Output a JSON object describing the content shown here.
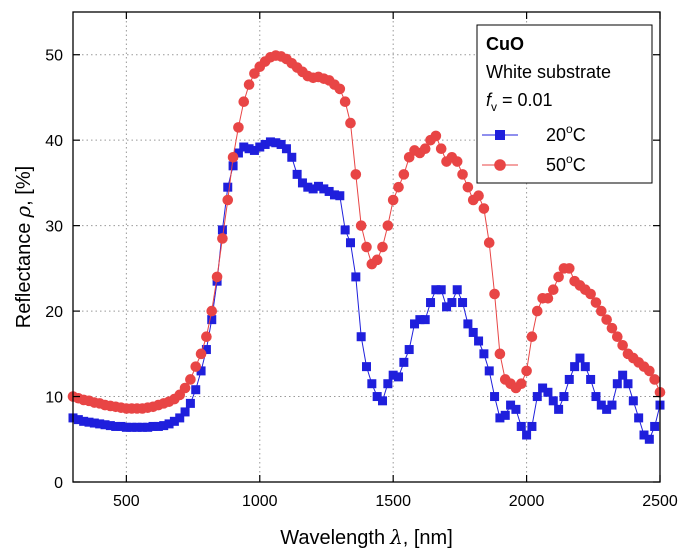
{
  "chart_data": {
    "type": "scatter",
    "xlabel": "Wavelength",
    "xlabel_symbol": "λ",
    "xlabel_unit": ", [nm]",
    "ylabel": "Reflectance",
    "ylabel_symbol": "ρ",
    "ylabel_unit": ", [%]",
    "xlim": [
      300,
      2500
    ],
    "ylim": [
      0,
      55
    ],
    "xticks": [
      500,
      1000,
      1500,
      2000,
      2500
    ],
    "yticks": [
      0,
      10,
      20,
      30,
      40,
      50
    ],
    "grid": "dotted",
    "legend": {
      "position": "top-right",
      "title": "CuO",
      "lines": [
        "White substrate"
      ],
      "param_symbol": "f",
      "param_subscript": "v",
      "param_value": " = 0.01"
    },
    "series": [
      {
        "name": "20°C",
        "label_value": "20",
        "label_sup": "o",
        "label_unit": "C",
        "color": "#1f1fdc",
        "marker": "square",
        "points": [
          [
            300,
            7.5
          ],
          [
            320,
            7.3
          ],
          [
            340,
            7.1
          ],
          [
            360,
            7.0
          ],
          [
            380,
            6.9
          ],
          [
            400,
            6.8
          ],
          [
            420,
            6.7
          ],
          [
            440,
            6.6
          ],
          [
            460,
            6.5
          ],
          [
            480,
            6.5
          ],
          [
            500,
            6.4
          ],
          [
            520,
            6.4
          ],
          [
            540,
            6.4
          ],
          [
            560,
            6.4
          ],
          [
            580,
            6.4
          ],
          [
            600,
            6.5
          ],
          [
            620,
            6.5
          ],
          [
            640,
            6.6
          ],
          [
            660,
            6.8
          ],
          [
            680,
            7.1
          ],
          [
            700,
            7.5
          ],
          [
            720,
            8.2
          ],
          [
            740,
            9.2
          ],
          [
            760,
            10.8
          ],
          [
            780,
            13.0
          ],
          [
            800,
            15.5
          ],
          [
            820,
            19.0
          ],
          [
            840,
            23.5
          ],
          [
            860,
            29.5
          ],
          [
            880,
            34.5
          ],
          [
            900,
            37.0
          ],
          [
            920,
            38.5
          ],
          [
            940,
            39.2
          ],
          [
            960,
            39.0
          ],
          [
            980,
            38.8
          ],
          [
            1000,
            39.2
          ],
          [
            1020,
            39.5
          ],
          [
            1040,
            39.8
          ],
          [
            1060,
            39.7
          ],
          [
            1080,
            39.5
          ],
          [
            1100,
            39.0
          ],
          [
            1120,
            38.0
          ],
          [
            1140,
            36.0
          ],
          [
            1160,
            35.0
          ],
          [
            1180,
            34.5
          ],
          [
            1200,
            34.3
          ],
          [
            1220,
            34.6
          ],
          [
            1240,
            34.3
          ],
          [
            1260,
            34.0
          ],
          [
            1280,
            33.6
          ],
          [
            1300,
            33.5
          ],
          [
            1320,
            29.5
          ],
          [
            1340,
            28.0
          ],
          [
            1360,
            24.0
          ],
          [
            1380,
            17.0
          ],
          [
            1400,
            13.5
          ],
          [
            1420,
            11.5
          ],
          [
            1440,
            10.0
          ],
          [
            1460,
            9.5
          ],
          [
            1480,
            11.5
          ],
          [
            1500,
            12.5
          ],
          [
            1520,
            12.3
          ],
          [
            1540,
            14.0
          ],
          [
            1560,
            15.5
          ],
          [
            1580,
            18.5
          ],
          [
            1600,
            19.0
          ],
          [
            1620,
            19.0
          ],
          [
            1640,
            21.0
          ],
          [
            1660,
            22.5
          ],
          [
            1680,
            22.5
          ],
          [
            1700,
            20.5
          ],
          [
            1720,
            21.0
          ],
          [
            1740,
            22.5
          ],
          [
            1760,
            21.0
          ],
          [
            1780,
            18.5
          ],
          [
            1800,
            17.5
          ],
          [
            1820,
            16.5
          ],
          [
            1840,
            15.0
          ],
          [
            1860,
            13.0
          ],
          [
            1880,
            10.0
          ],
          [
            1900,
            7.5
          ],
          [
            1920,
            7.8
          ],
          [
            1940,
            9.0
          ],
          [
            1960,
            8.5
          ],
          [
            1980,
            6.5
          ],
          [
            2000,
            5.5
          ],
          [
            2020,
            6.5
          ],
          [
            2040,
            10.0
          ],
          [
            2060,
            11.0
          ],
          [
            2080,
            10.5
          ],
          [
            2100,
            9.5
          ],
          [
            2120,
            8.5
          ],
          [
            2140,
            10.0
          ],
          [
            2160,
            12.0
          ],
          [
            2180,
            13.5
          ],
          [
            2200,
            14.5
          ],
          [
            2220,
            13.5
          ],
          [
            2240,
            12.0
          ],
          [
            2260,
            10.0
          ],
          [
            2280,
            9.0
          ],
          [
            2300,
            8.5
          ],
          [
            2320,
            9.0
          ],
          [
            2340,
            11.5
          ],
          [
            2360,
            12.5
          ],
          [
            2380,
            11.5
          ],
          [
            2400,
            9.5
          ],
          [
            2420,
            7.5
          ],
          [
            2440,
            5.5
          ],
          [
            2460,
            5.0
          ],
          [
            2480,
            6.5
          ],
          [
            2500,
            9.0
          ]
        ]
      },
      {
        "name": "50°C",
        "label_value": "50",
        "label_sup": "o",
        "label_unit": "C",
        "color": "#e84545",
        "marker": "circle",
        "points": [
          [
            300,
            10.0
          ],
          [
            320,
            9.8
          ],
          [
            340,
            9.6
          ],
          [
            360,
            9.5
          ],
          [
            380,
            9.3
          ],
          [
            400,
            9.2
          ],
          [
            420,
            9.0
          ],
          [
            440,
            8.9
          ],
          [
            460,
            8.8
          ],
          [
            480,
            8.7
          ],
          [
            500,
            8.6
          ],
          [
            520,
            8.6
          ],
          [
            540,
            8.6
          ],
          [
            560,
            8.6
          ],
          [
            580,
            8.7
          ],
          [
            600,
            8.8
          ],
          [
            620,
            9.0
          ],
          [
            640,
            9.2
          ],
          [
            660,
            9.4
          ],
          [
            680,
            9.7
          ],
          [
            700,
            10.2
          ],
          [
            720,
            11.0
          ],
          [
            740,
            12.0
          ],
          [
            760,
            13.5
          ],
          [
            780,
            15.0
          ],
          [
            800,
            17.0
          ],
          [
            820,
            20.0
          ],
          [
            840,
            24.0
          ],
          [
            860,
            28.5
          ],
          [
            880,
            33.0
          ],
          [
            900,
            38.0
          ],
          [
            920,
            41.5
          ],
          [
            940,
            44.5
          ],
          [
            960,
            46.5
          ],
          [
            980,
            47.8
          ],
          [
            1000,
            48.6
          ],
          [
            1020,
            49.2
          ],
          [
            1040,
            49.7
          ],
          [
            1060,
            49.9
          ],
          [
            1080,
            49.8
          ],
          [
            1100,
            49.5
          ],
          [
            1120,
            49.0
          ],
          [
            1140,
            48.5
          ],
          [
            1160,
            48.0
          ],
          [
            1180,
            47.5
          ],
          [
            1200,
            47.3
          ],
          [
            1220,
            47.4
          ],
          [
            1240,
            47.2
          ],
          [
            1260,
            47.0
          ],
          [
            1280,
            46.5
          ],
          [
            1300,
            46.0
          ],
          [
            1320,
            44.5
          ],
          [
            1340,
            42.0
          ],
          [
            1360,
            36.0
          ],
          [
            1380,
            30.0
          ],
          [
            1400,
            27.5
          ],
          [
            1420,
            25.5
          ],
          [
            1440,
            26.0
          ],
          [
            1460,
            27.5
          ],
          [
            1480,
            30.0
          ],
          [
            1500,
            33.0
          ],
          [
            1520,
            34.5
          ],
          [
            1540,
            36.0
          ],
          [
            1560,
            38.0
          ],
          [
            1580,
            38.8
          ],
          [
            1600,
            38.5
          ],
          [
            1620,
            39.0
          ],
          [
            1640,
            40.0
          ],
          [
            1660,
            40.5
          ],
          [
            1680,
            39.0
          ],
          [
            1700,
            37.5
          ],
          [
            1720,
            38.0
          ],
          [
            1740,
            37.5
          ],
          [
            1760,
            36.0
          ],
          [
            1780,
            34.5
          ],
          [
            1800,
            33.0
          ],
          [
            1820,
            33.5
          ],
          [
            1840,
            32.0
          ],
          [
            1860,
            28.0
          ],
          [
            1880,
            22.0
          ],
          [
            1900,
            15.0
          ],
          [
            1920,
            12.0
          ],
          [
            1940,
            11.5
          ],
          [
            1960,
            11.0
          ],
          [
            1980,
            11.5
          ],
          [
            2000,
            13.0
          ],
          [
            2020,
            17.0
          ],
          [
            2040,
            20.0
          ],
          [
            2060,
            21.5
          ],
          [
            2080,
            21.5
          ],
          [
            2100,
            22.5
          ],
          [
            2120,
            24.0
          ],
          [
            2140,
            25.0
          ],
          [
            2160,
            25.0
          ],
          [
            2180,
            23.5
          ],
          [
            2200,
            23.0
          ],
          [
            2220,
            22.5
          ],
          [
            2240,
            22.0
          ],
          [
            2260,
            21.0
          ],
          [
            2280,
            20.0
          ],
          [
            2300,
            19.0
          ],
          [
            2320,
            18.0
          ],
          [
            2340,
            17.0
          ],
          [
            2360,
            16.0
          ],
          [
            2380,
            15.0
          ],
          [
            2400,
            14.5
          ],
          [
            2420,
            14.0
          ],
          [
            2440,
            13.5
          ],
          [
            2460,
            13.0
          ],
          [
            2480,
            12.0
          ],
          [
            2500,
            10.5
          ]
        ]
      }
    ]
  }
}
